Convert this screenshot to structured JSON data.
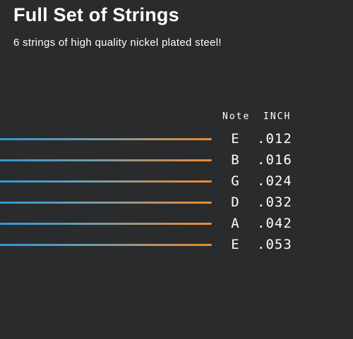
{
  "header": {
    "title": "Full Set of Strings",
    "subtitle": "6 strings of high quality nickel plated steel!"
  },
  "columns": {
    "note_label": "Note",
    "inch_label": "INCH"
  },
  "colors": {
    "background": "#2a2b2d",
    "string_start": "#2f9ad6",
    "string_end": "#f08a2c",
    "text": "#ffffff"
  },
  "strings": [
    {
      "note": "E",
      "inch": ".012"
    },
    {
      "note": "B",
      "inch": ".016"
    },
    {
      "note": "G",
      "inch": ".024"
    },
    {
      "note": "D",
      "inch": ".032"
    },
    {
      "note": "A",
      "inch": ".042"
    },
    {
      "note": "E",
      "inch": ".053"
    }
  ]
}
